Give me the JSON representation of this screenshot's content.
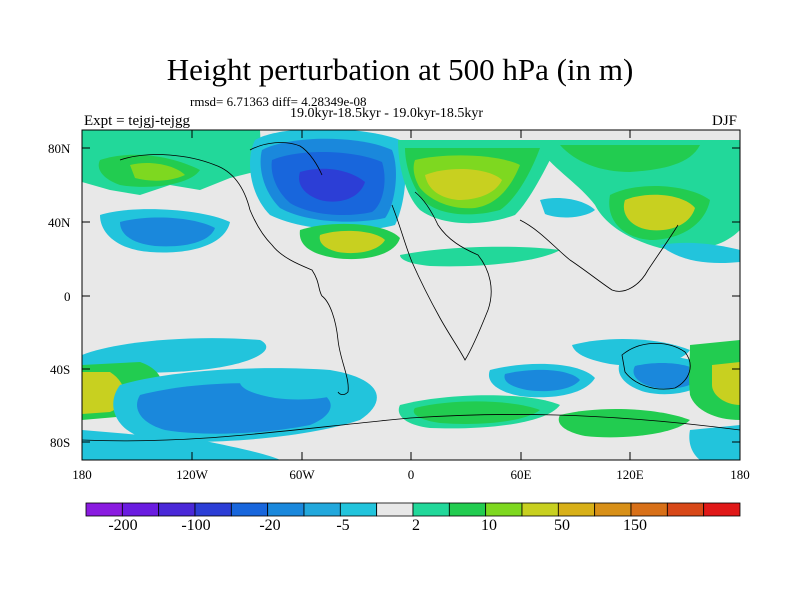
{
  "title": "Height perturbation at 500 hPa (in m)",
  "stats": "rmsd= 6.71363 diff= 4.28349e-08",
  "period": "19.0kyr-18.5kyr - 19.0kyr-18.5kyr",
  "experiment": "Expt = tejgj-tejgg",
  "season": "DJF",
  "lat_ticks": [
    "80N",
    "40N",
    "0",
    "40S",
    "80S"
  ],
  "lon_ticks": [
    "180",
    "120W",
    "60W",
    "0",
    "60E",
    "120E",
    "180"
  ],
  "colorbar": {
    "labels": [
      "-200",
      "-100",
      "-20",
      "-5",
      "2",
      "10",
      "50",
      "150"
    ],
    "colors": [
      "#8a1be0",
      "#6a1ce0",
      "#4a28d8",
      "#2c3ed6",
      "#1866dc",
      "#1a88dc",
      "#22a8dc",
      "#22c4dc",
      "#e8e8e8",
      "#22d89a",
      "#22cc50",
      "#7ed820",
      "#c8d020",
      "#d8b018",
      "#d89018",
      "#d87018",
      "#d84818",
      "#e01818"
    ]
  },
  "colors": {
    "background": "#e8e8e8",
    "light_blue": "#22c4dc",
    "mid_blue": "#1a88dc",
    "dark_blue": "#1866dc",
    "deep_blue": "#2c3ed6",
    "green": "#22cc50",
    "lime": "#7ed820",
    "yellow": "#c8d020",
    "aqua_green": "#22d89a"
  }
}
